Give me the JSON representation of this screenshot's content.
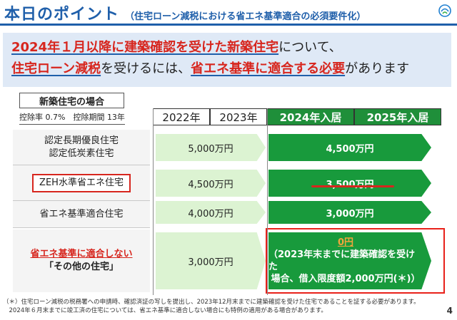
{
  "header": {
    "title": "本日のポイント",
    "subtitle": "（住宅ローン減税における省エネ基準適合の必須要件化）"
  },
  "banner": {
    "line1_hl": "2024年１月以降に建築確認を受けた新築住宅",
    "line1_rest": "について、",
    "line2_hl1": "住宅ローン減税",
    "line2_mid": "を受けるには、",
    "line2_hl2": "省エネ基準に適合する必要",
    "line2_rest": "があります"
  },
  "section": {
    "label": "新築住宅の場合",
    "rate_text": "控除率 0.7%　控除期間 13年"
  },
  "columns": [
    "2022年",
    "2023年",
    "2024年入居",
    "2025年入居"
  ],
  "rows": [
    {
      "label_lines": [
        "認定長期優良住宅",
        "認定低炭素住宅"
      ],
      "limit_2022_2023": "5,000万円",
      "limit_2024_2025": "4,500万円"
    },
    {
      "label": "ZEH水準省エネ住宅",
      "limit_2022_2023": "4,500万円",
      "limit_2024_2025": "3,500万円"
    },
    {
      "label": "省エネ基準適合住宅",
      "limit_2022_2023": "4,000万円",
      "limit_2024_2025": "3,000万円"
    },
    {
      "label_red": "省エネ基準に適合しない",
      "label_sub": "「その他の住宅」",
      "limit_2022_2023": "3,000万円",
      "limit_2024_2025": "0円",
      "note_lines": [
        "（2023年末までに建築確認を受けた",
        "場合、借入限度額2,000万円(＊)）"
      ]
    }
  ],
  "footnote_lines": [
    "（＊）住宅ローン減税の税務署への申請時、確認済証の写しを提出し、2023年12月末までに建築確認を受けた住宅であることを証する必要があります。",
    "　2024年６月末までに竣工済の住宅については、省エネ基準に適合しない場合にも特例の適用がある場合があります。"
  ],
  "page_number": "4",
  "colors": {
    "brand": "#1f5faa",
    "accent": "#d7261e",
    "green": "#1f8f3a"
  }
}
